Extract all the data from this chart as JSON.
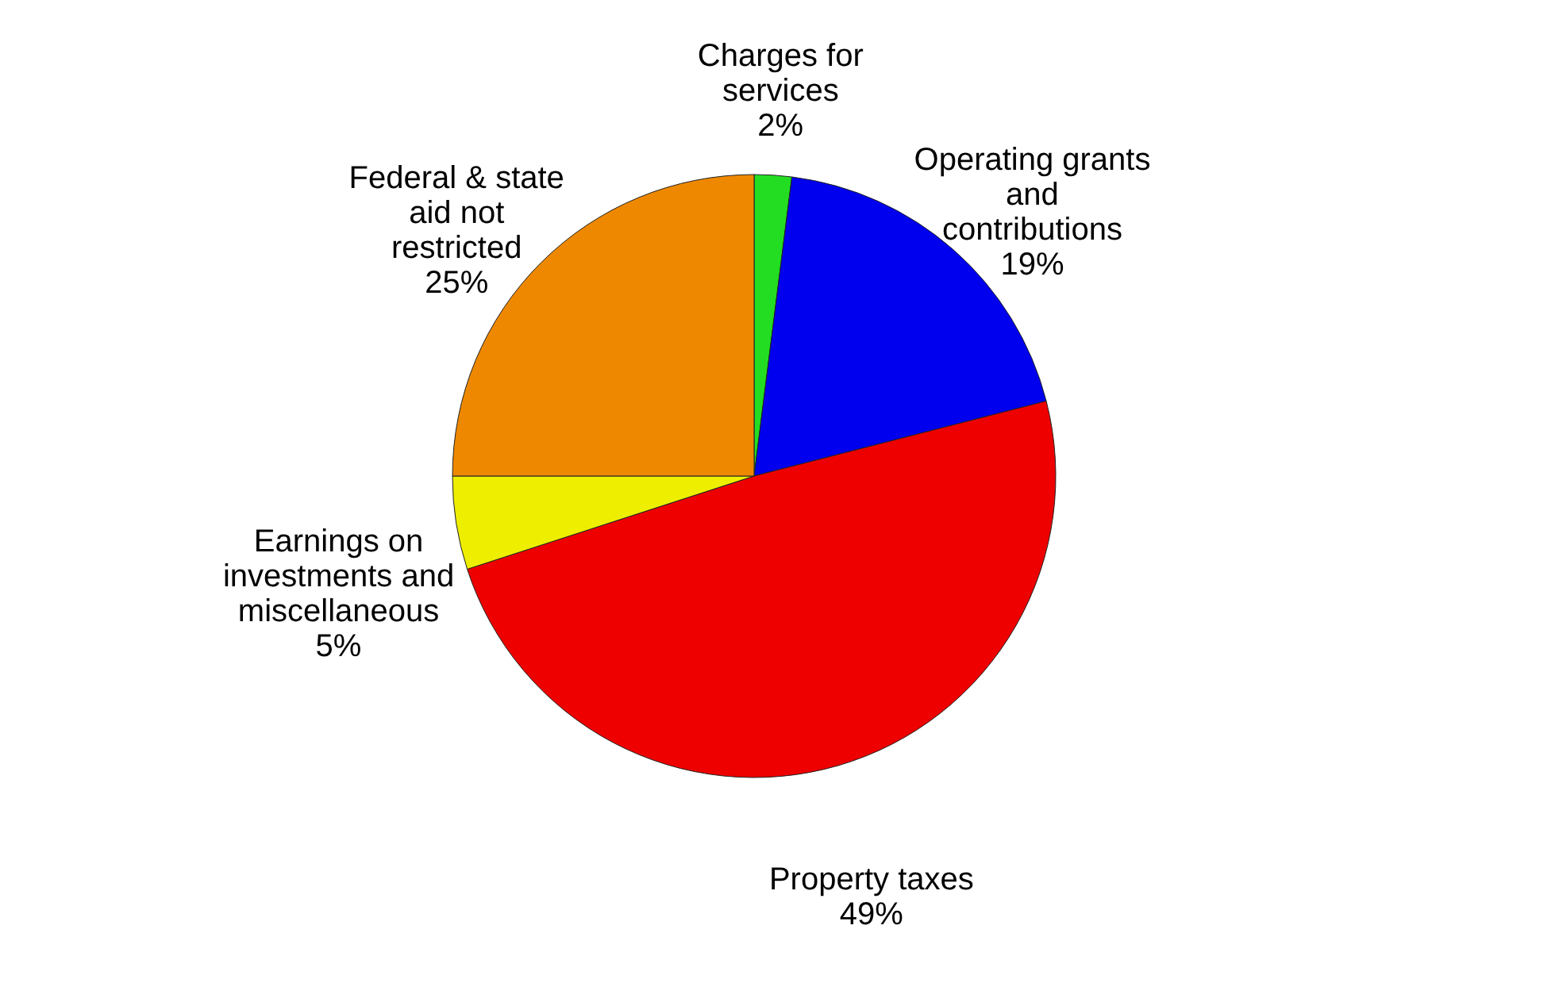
{
  "chart_data": {
    "type": "pie",
    "categories": [
      "Charges for services",
      "Operating grants and contributions",
      "Property taxes",
      "Earnings on investments and miscellaneous",
      "Federal & state aid not restricted"
    ],
    "values": [
      2,
      19,
      49,
      5,
      25
    ],
    "value_labels": [
      "2%",
      "19%",
      "49%",
      "5%",
      "25%"
    ],
    "colors": [
      "#22dd22",
      "#0000ee",
      "#ee0000",
      "#eeee00",
      "#ee8800"
    ],
    "legend": false
  }
}
